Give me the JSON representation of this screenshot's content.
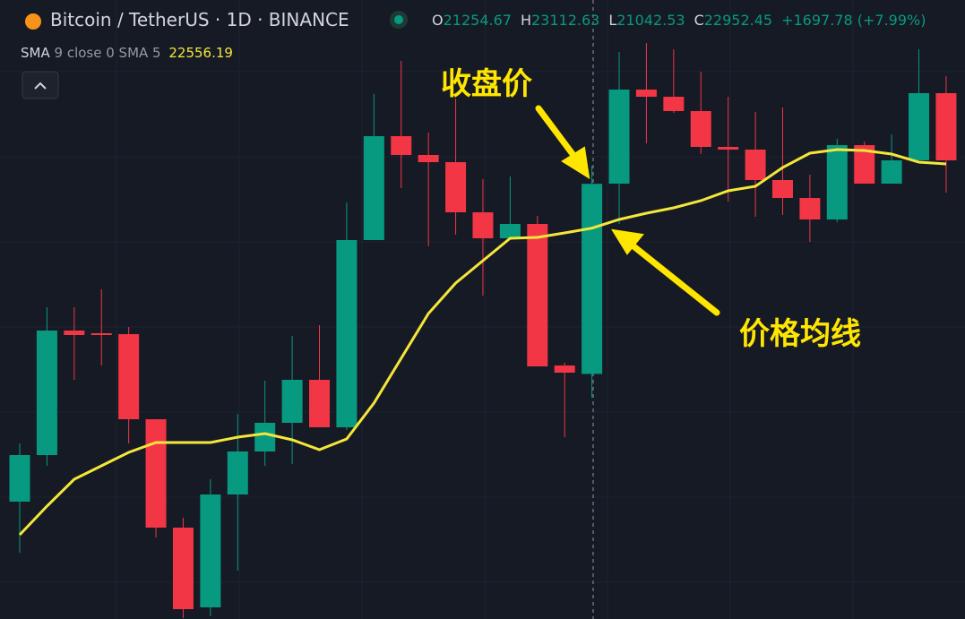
{
  "chart_data": {
    "type": "candlestick",
    "title": "Bitcoin / TetherUS · 1D · BINANCE",
    "ohlc": [
      {
        "label": "O",
        "value": 21254.67
      },
      {
        "label": "H",
        "value": 23112.63
      },
      {
        "label": "L",
        "value": 21042.53
      },
      {
        "label": "C",
        "value": 22952.45
      }
    ],
    "change_label": "+1697.78 (+7.99%)",
    "indicator": {
      "name": "SMA",
      "params": "9 close 0 SMA 5",
      "value": 22556.19
    },
    "annotations": [
      "收盘价",
      "价格均线"
    ],
    "up_color": "#089981",
    "down_color": "#f23645",
    "grid": true,
    "ylim": [
      19066,
      24594
    ],
    "series": {
      "open": [
        20114,
        20530,
        21642,
        21618,
        21610,
        20850,
        19882,
        19170,
        20178,
        20562,
        20818,
        21202,
        20778,
        22450,
        23378,
        23210,
        23146,
        22698,
        22466,
        22594,
        21330,
        21254.67,
        22954,
        23794,
        23730,
        23602,
        23282,
        23258,
        22986,
        22826,
        22634,
        23298,
        22954,
        23162,
        23762
      ],
      "high": [
        20634,
        21850,
        21850,
        22010,
        21674,
        20850,
        19970,
        20314,
        20898,
        21194,
        21594,
        21690,
        22786,
        23754,
        24050,
        23410,
        23714,
        22994,
        23018,
        22666,
        21354,
        23112.63,
        24130,
        24210,
        24154,
        23954,
        23730,
        23594,
        23634,
        23034,
        23354,
        23330,
        23394,
        24154,
        23914
      ],
      "low": [
        19658,
        20434,
        21202,
        21330,
        20634,
        19794,
        19074,
        19090,
        19498,
        20434,
        20450,
        20778,
        20754,
        22450,
        22914,
        22394,
        22498,
        21954,
        22450,
        21322,
        20690,
        21042.53,
        22594,
        23314,
        23586,
        23218,
        22794,
        22658,
        22674,
        22434,
        22610,
        22954,
        22954,
        23162,
        22874
      ],
      "close": [
        20530,
        21642,
        21602,
        21602,
        20850,
        19882,
        19154,
        20178,
        20562,
        20818,
        21202,
        20778,
        22450,
        23378,
        23210,
        23146,
        22698,
        22466,
        22594,
        21322,
        21266,
        22952.45,
        23794,
        23730,
        23602,
        23282,
        23258,
        22986,
        22826,
        22634,
        23298,
        22954,
        23162,
        23762,
        23162
      ]
    },
    "sma": {
      "color": "#f5e63a",
      "values": [
        19818,
        20074,
        20314,
        20434,
        20554,
        20642,
        20642,
        20642,
        20690,
        20722,
        20666,
        20578,
        20674,
        20994,
        21394,
        21794,
        22066,
        22266,
        22466,
        22474,
        22514,
        22556.19,
        22634,
        22690,
        22738,
        22802,
        22890,
        22930,
        23098,
        23226,
        23258,
        23250,
        23218,
        23146,
        23130
      ]
    }
  }
}
